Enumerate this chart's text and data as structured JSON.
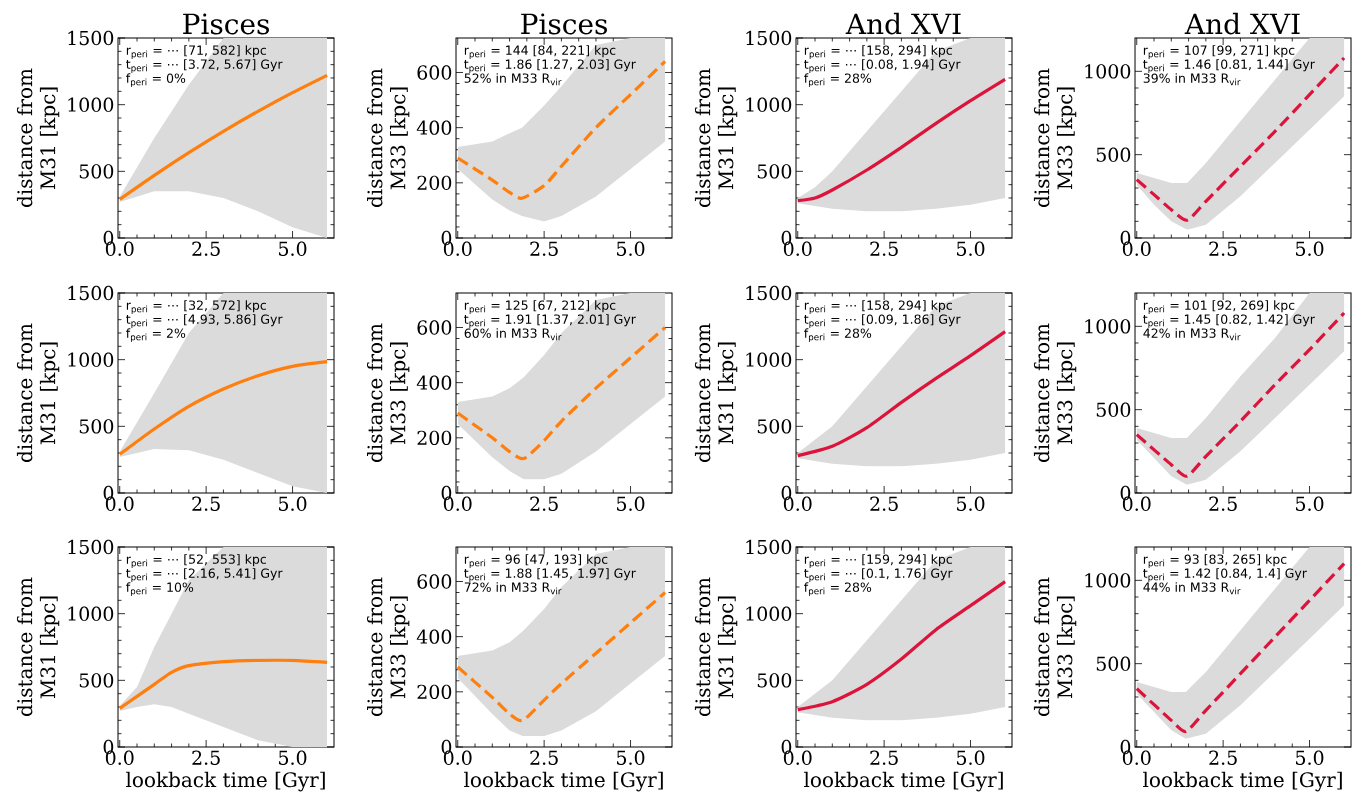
{
  "chart_data": [
    {
      "type": "line",
      "title": "Pisces",
      "ylabel": "distance from M31 [kpc]",
      "line_style": "solid",
      "xlim": [
        -0.05,
        6.2
      ],
      "ylim": [
        0,
        1500
      ],
      "xticks": [
        {
          "value": 0,
          "label": "0.0"
        },
        {
          "value": 2.5,
          "label": "2.5"
        },
        {
          "value": 5,
          "label": "5.0"
        }
      ],
      "yticks": [
        0,
        500,
        1000,
        1500
      ],
      "series": [
        {
          "color": "#ff7f0e",
          "x": [
            0,
            1,
            2,
            3,
            4,
            5,
            6
          ],
          "values": [
            290,
            470,
            640,
            800,
            950,
            1090,
            1220
          ],
          "lower": [
            270,
            350,
            350,
            300,
            200,
            80,
            0
          ],
          "upper": [
            310,
            750,
            1150,
            1500,
            1500,
            1500,
            1500
          ]
        }
      ],
      "annotations": [
        "r$_{peri}$ = ⋯ [71, 582] kpc",
        "t$_{peri}$ = ⋯ [3.72, 5.67] Gyr",
        "f$_{peri}$ = 0%"
      ]
    },
    {
      "type": "line",
      "title": "Pisces",
      "ylabel": "distance from M33 [kpc]",
      "line_style": "dashed",
      "xlim": [
        -0.05,
        6.2
      ],
      "ylim": [
        0,
        725
      ],
      "xticks": [
        {
          "value": 0,
          "label": "0.0"
        },
        {
          "value": 2.5,
          "label": "2.5"
        },
        {
          "value": 5,
          "label": "5.0"
        }
      ],
      "yticks": [
        0,
        200,
        400,
        600
      ],
      "series": [
        {
          "color": "#ff7f0e",
          "x": [
            0,
            1,
            1.5,
            1.86,
            2.5,
            3,
            4,
            5,
            6
          ],
          "values": [
            290,
            210,
            165,
            144,
            190,
            260,
            400,
            520,
            640
          ],
          "lower": [
            250,
            140,
            100,
            80,
            60,
            80,
            150,
            250,
            350
          ],
          "upper": [
            330,
            350,
            380,
            400,
            480,
            550,
            700,
            725,
            725
          ]
        }
      ],
      "annotations": [
        "r$_{peri}$ = 144 [84, 221] kpc",
        "t$_{peri}$ = 1.86 [1.27, 2.03] Gyr",
        "52% in M33 R$_{vir}$"
      ]
    },
    {
      "type": "line",
      "title": "And XVI",
      "ylabel": "distance from M31 [kpc]",
      "line_style": "solid",
      "xlim": [
        -0.05,
        6.2
      ],
      "ylim": [
        0,
        1500
      ],
      "xticks": [
        {
          "value": 0,
          "label": "0.0"
        },
        {
          "value": 2.5,
          "label": "2.5"
        },
        {
          "value": 5,
          "label": "5.0"
        }
      ],
      "yticks": [
        0,
        500,
        1000,
        1500
      ],
      "series": [
        {
          "color": "#dc143c",
          "x": [
            0,
            0.5,
            1,
            2,
            3,
            4,
            5,
            6
          ],
          "values": [
            280,
            300,
            360,
            510,
            680,
            860,
            1030,
            1190
          ],
          "lower": [
            260,
            240,
            220,
            200,
            200,
            220,
            250,
            300
          ],
          "upper": [
            300,
            380,
            500,
            800,
            1100,
            1400,
            1500,
            1500
          ]
        }
      ],
      "annotations": [
        "r$_{peri}$ = ⋯ [158, 294] kpc",
        "t$_{peri}$ = ⋯ [0.08, 1.94] Gyr",
        "f$_{peri}$ = 28%"
      ]
    },
    {
      "type": "line",
      "title": "And XVI",
      "ylabel": "distance from M33 [kpc]",
      "line_style": "dashed",
      "xlim": [
        -0.05,
        6.2
      ],
      "ylim": [
        0,
        1200
      ],
      "xticks": [
        {
          "value": 0,
          "label": "0.0"
        },
        {
          "value": 2.5,
          "label": "2.5"
        },
        {
          "value": 5,
          "label": "5.0"
        }
      ],
      "yticks": [
        0,
        500,
        1000
      ],
      "series": [
        {
          "color": "#dc143c",
          "x": [
            0,
            0.5,
            1,
            1.46,
            2,
            3,
            4,
            5,
            6
          ],
          "values": [
            350,
            260,
            170,
            107,
            220,
            430,
            640,
            860,
            1080
          ],
          "lower": [
            320,
            200,
            100,
            50,
            80,
            250,
            450,
            650,
            850
          ],
          "upper": [
            390,
            360,
            330,
            330,
            450,
            700,
            950,
            1200,
            1200
          ]
        }
      ],
      "annotations": [
        "r$_{peri}$ = 107 [99, 271] kpc",
        "t$_{peri}$ = 1.46 [0.81, 1.44] Gyr",
        "39% in M33 R$_{vir}$"
      ]
    },
    {
      "type": "line",
      "ylabel": "distance from M31 [kpc]",
      "line_style": "solid",
      "xlim": [
        -0.05,
        6.2
      ],
      "ylim": [
        0,
        1500
      ],
      "xticks": [
        {
          "value": 0,
          "label": "0.0"
        },
        {
          "value": 2.5,
          "label": "2.5"
        },
        {
          "value": 5,
          "label": "5.0"
        }
      ],
      "yticks": [
        0,
        500,
        1000,
        1500
      ],
      "series": [
        {
          "color": "#ff7f0e",
          "x": [
            0,
            1,
            2,
            3,
            4,
            5,
            6
          ],
          "values": [
            290,
            480,
            650,
            780,
            880,
            950,
            985
          ],
          "lower": [
            270,
            330,
            320,
            250,
            150,
            50,
            0
          ],
          "upper": [
            310,
            750,
            1200,
            1500,
            1500,
            1500,
            1500
          ]
        }
      ],
      "annotations": [
        "r$_{peri}$ = ⋯ [32, 572] kpc",
        "t$_{peri}$ = ⋯ [4.93, 5.86] Gyr",
        "f$_{peri}$ = 2%"
      ]
    },
    {
      "type": "line",
      "ylabel": "distance from M33 [kpc]",
      "line_style": "dashed",
      "xlim": [
        -0.05,
        6.2
      ],
      "ylim": [
        0,
        725
      ],
      "xticks": [
        {
          "value": 0,
          "label": "0.0"
        },
        {
          "value": 2.5,
          "label": "2.5"
        },
        {
          "value": 5,
          "label": "5.0"
        }
      ],
      "yticks": [
        0,
        200,
        400,
        600
      ],
      "series": [
        {
          "color": "#ff7f0e",
          "x": [
            0,
            1,
            1.5,
            1.91,
            2.5,
            3,
            4,
            5,
            6
          ],
          "values": [
            290,
            200,
            150,
            125,
            190,
            260,
            380,
            490,
            600
          ],
          "lower": [
            250,
            130,
            80,
            50,
            50,
            70,
            150,
            250,
            350
          ],
          "upper": [
            330,
            350,
            380,
            420,
            500,
            580,
            700,
            725,
            725
          ]
        }
      ],
      "annotations": [
        "r$_{peri}$ = 125 [67, 212] kpc",
        "t$_{peri}$ = 1.91 [1.37, 2.01] Gyr",
        "60% in M33 R$_{vir}$"
      ]
    },
    {
      "type": "line",
      "ylabel": "distance from M31 [kpc]",
      "line_style": "solid",
      "xlim": [
        -0.05,
        6.2
      ],
      "ylim": [
        0,
        1500
      ],
      "xticks": [
        {
          "value": 0,
          "label": "0.0"
        },
        {
          "value": 2.5,
          "label": "2.5"
        },
        {
          "value": 5,
          "label": "5.0"
        }
      ],
      "yticks": [
        0,
        500,
        1000,
        1500
      ],
      "series": [
        {
          "color": "#dc143c",
          "x": [
            0,
            1,
            2,
            3,
            4,
            5,
            6
          ],
          "values": [
            280,
            350,
            490,
            680,
            860,
            1030,
            1210
          ],
          "lower": [
            260,
            220,
            200,
            200,
            220,
            250,
            300
          ],
          "upper": [
            300,
            500,
            800,
            1100,
            1400,
            1500,
            1500
          ]
        }
      ],
      "annotations": [
        "r$_{peri}$ = ⋯ [158, 294] kpc",
        "t$_{peri}$ = ⋯ [0.09, 1.86] Gyr",
        "f$_{peri}$ = 28%"
      ]
    },
    {
      "type": "line",
      "ylabel": "distance from M33 [kpc]",
      "line_style": "dashed",
      "xlim": [
        -0.05,
        6.2
      ],
      "ylim": [
        0,
        1200
      ],
      "xticks": [
        {
          "value": 0,
          "label": "0.0"
        },
        {
          "value": 2.5,
          "label": "2.5"
        },
        {
          "value": 5,
          "label": "5.0"
        }
      ],
      "yticks": [
        0,
        500,
        1000
      ],
      "series": [
        {
          "color": "#dc143c",
          "x": [
            0,
            1,
            1.45,
            2,
            3,
            4,
            5,
            6
          ],
          "values": [
            350,
            170,
            101,
            220,
            430,
            650,
            860,
            1080
          ],
          "lower": [
            320,
            100,
            50,
            80,
            250,
            450,
            650,
            850
          ],
          "upper": [
            390,
            330,
            330,
            450,
            700,
            930,
            1200,
            1200
          ]
        }
      ],
      "annotations": [
        "r$_{peri}$ = 101 [92, 269] kpc",
        "t$_{peri}$ = 1.45 [0.82, 1.42] Gyr",
        "42% in M33 R$_{vir}$"
      ]
    },
    {
      "type": "line",
      "xlabel": "lookback time [Gyr]",
      "ylabel": "distance from M31 [kpc]",
      "line_style": "solid",
      "xlim": [
        -0.05,
        6.2
      ],
      "ylim": [
        0,
        1500
      ],
      "xticks": [
        {
          "value": 0,
          "label": "0.0"
        },
        {
          "value": 2.5,
          "label": "2.5"
        },
        {
          "value": 5,
          "label": "5.0"
        }
      ],
      "yticks": [
        0,
        500,
        1000,
        1500
      ],
      "series": [
        {
          "color": "#ff7f0e",
          "x": [
            0,
            0.5,
            1,
            1.5,
            2,
            3,
            4,
            5,
            6
          ],
          "values": [
            290,
            380,
            470,
            560,
            610,
            640,
            650,
            650,
            635
          ],
          "lower": [
            270,
            300,
            320,
            300,
            250,
            150,
            50,
            0,
            0
          ],
          "upper": [
            310,
            450,
            750,
            1000,
            1250,
            1500,
            1500,
            1500,
            1500
          ]
        }
      ],
      "annotations": [
        "r$_{peri}$ = ⋯ [52, 553] kpc",
        "t$_{peri}$ = ⋯ [2.16, 5.41] Gyr",
        "f$_{peri}$ = 10%"
      ]
    },
    {
      "type": "line",
      "xlabel": "lookback time [Gyr]",
      "ylabel": "distance from M33 [kpc]",
      "line_style": "dashed",
      "xlim": [
        -0.05,
        6.2
      ],
      "ylim": [
        0,
        725
      ],
      "xticks": [
        {
          "value": 0,
          "label": "0.0"
        },
        {
          "value": 2.5,
          "label": "2.5"
        },
        {
          "value": 5,
          "label": "5.0"
        }
      ],
      "yticks": [
        0,
        200,
        400,
        600
      ],
      "series": [
        {
          "color": "#ff7f0e",
          "x": [
            0,
            1,
            1.5,
            1.88,
            2.5,
            3,
            4,
            5,
            6
          ],
          "values": [
            290,
            180,
            120,
            96,
            170,
            230,
            340,
            450,
            560
          ],
          "lower": [
            250,
            120,
            60,
            40,
            40,
            60,
            130,
            230,
            330
          ],
          "upper": [
            330,
            350,
            380,
            420,
            500,
            580,
            700,
            725,
            725
          ]
        }
      ],
      "annotations": [
        "r$_{peri}$ = 96 [47, 193] kpc",
        "t$_{peri}$ = 1.88 [1.45, 1.97] Gyr",
        "72% in M33 R$_{vir}$"
      ]
    },
    {
      "type": "line",
      "xlabel": "lookback time [Gyr]",
      "ylabel": "distance from M31 [kpc]",
      "line_style": "solid",
      "xlim": [
        -0.05,
        6.2
      ],
      "ylim": [
        0,
        1500
      ],
      "xticks": [
        {
          "value": 0,
          "label": "0.0"
        },
        {
          "value": 2.5,
          "label": "2.5"
        },
        {
          "value": 5,
          "label": "5.0"
        }
      ],
      "yticks": [
        0,
        500,
        1000,
        1500
      ],
      "series": [
        {
          "color": "#dc143c",
          "x": [
            0,
            1,
            2,
            3,
            4,
            5,
            6
          ],
          "values": [
            280,
            340,
            470,
            660,
            880,
            1060,
            1240
          ],
          "lower": [
            260,
            220,
            200,
            200,
            220,
            250,
            300
          ],
          "upper": [
            300,
            500,
            800,
            1100,
            1400,
            1500,
            1500
          ]
        }
      ],
      "annotations": [
        "r$_{peri}$ = ⋯ [159, 294] kpc",
        "t$_{peri}$ = ⋯ [0.1, 1.76] Gyr",
        "f$_{peri}$ = 28%"
      ]
    },
    {
      "type": "line",
      "xlabel": "lookback time [Gyr]",
      "ylabel": "distance from M33 [kpc]",
      "line_style": "dashed",
      "xlim": [
        -0.05,
        6.2
      ],
      "ylim": [
        0,
        1200
      ],
      "xticks": [
        {
          "value": 0,
          "label": "0.0"
        },
        {
          "value": 2.5,
          "label": "2.5"
        },
        {
          "value": 5,
          "label": "5.0"
        }
      ],
      "yticks": [
        0,
        500,
        1000
      ],
      "series": [
        {
          "color": "#dc143c",
          "x": [
            0,
            1,
            1.42,
            2,
            3,
            4,
            5,
            6
          ],
          "values": [
            350,
            160,
            93,
            220,
            440,
            660,
            880,
            1100
          ],
          "lower": [
            320,
            100,
            50,
            80,
            250,
            450,
            650,
            850
          ],
          "upper": [
            390,
            330,
            330,
            450,
            700,
            950,
            1200,
            1200
          ]
        }
      ],
      "annotations": [
        "r$_{peri}$ = 93 [83, 265] kpc",
        "t$_{peri}$ = 1.42 [0.84, 1.4] Gyr",
        "44% in M33 R$_{vir}$"
      ]
    }
  ]
}
